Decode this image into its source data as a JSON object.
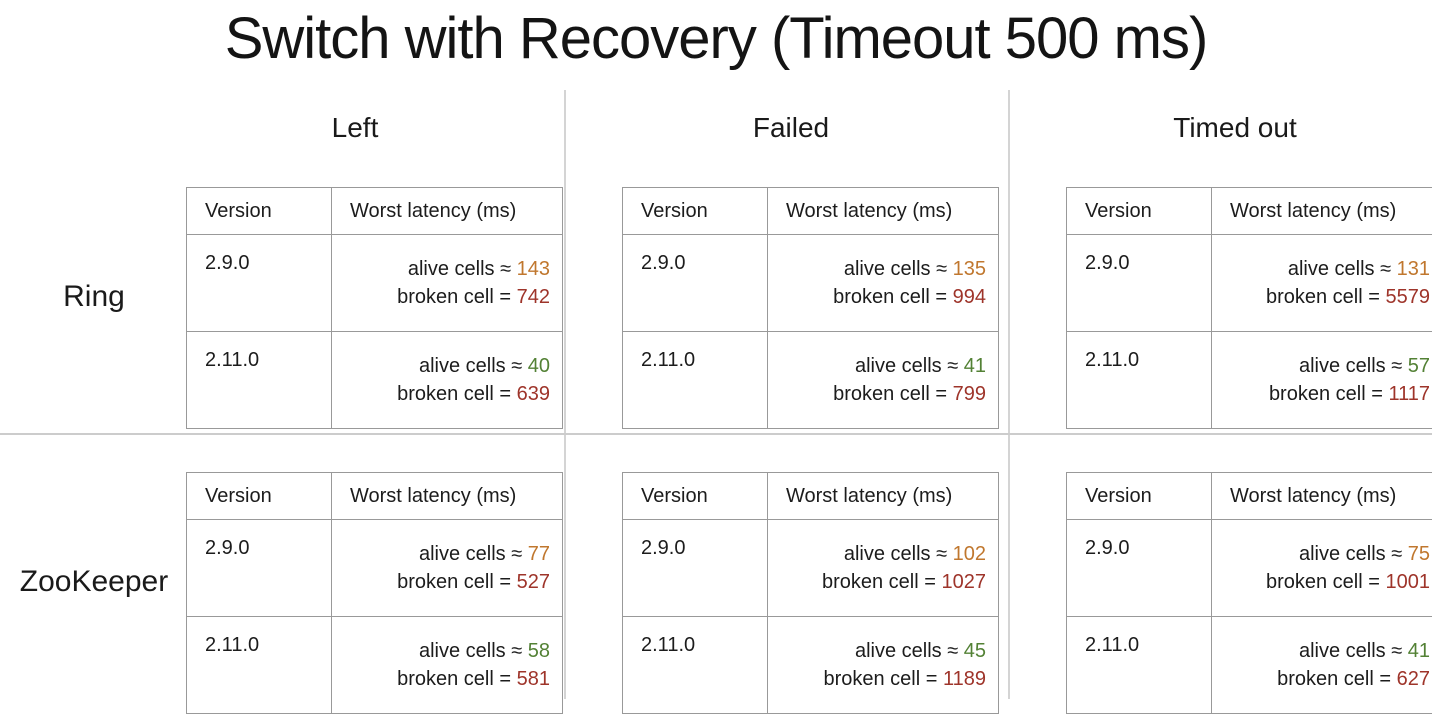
{
  "title": "Switch with Recovery (Timeout 500 ms)",
  "scenario_headers": [
    "Left",
    "Failed",
    "Timed out"
  ],
  "system_labels": [
    "Ring",
    "ZooKeeper"
  ],
  "table_columns": {
    "version": "Version",
    "latency": "Worst latency (ms)"
  },
  "latency_labels": {
    "alive": "alive cells ≈",
    "broken": "broken cell ="
  },
  "colors": {
    "alive_slow": "#c0772e",
    "alive_fast": "#538135",
    "broken_value": "#9e342a",
    "table_border": "#999999",
    "divider": "#d4d4d4"
  },
  "tables": [
    {
      "system": "Ring",
      "scenario": "Left",
      "entries": [
        {
          "version": "2.9.0",
          "alive_ms": "143",
          "alive_color": "alive_slow",
          "broken_ms": "742"
        },
        {
          "version": "2.11.0",
          "alive_ms": "40",
          "alive_color": "alive_fast",
          "broken_ms": "639"
        }
      ]
    },
    {
      "system": "Ring",
      "scenario": "Failed",
      "entries": [
        {
          "version": "2.9.0",
          "alive_ms": "135",
          "alive_color": "alive_slow",
          "broken_ms": "994"
        },
        {
          "version": "2.11.0",
          "alive_ms": "41",
          "alive_color": "alive_fast",
          "broken_ms": "799"
        }
      ]
    },
    {
      "system": "Ring",
      "scenario": "Timed out",
      "entries": [
        {
          "version": "2.9.0",
          "alive_ms": "131",
          "alive_color": "alive_slow",
          "broken_ms": "5579"
        },
        {
          "version": "2.11.0",
          "alive_ms": "57",
          "alive_color": "alive_fast",
          "broken_ms": "1117"
        }
      ]
    },
    {
      "system": "ZooKeeper",
      "scenario": "Left",
      "entries": [
        {
          "version": "2.9.0",
          "alive_ms": "77",
          "alive_color": "alive_slow",
          "broken_ms": "527"
        },
        {
          "version": "2.11.0",
          "alive_ms": "58",
          "alive_color": "alive_fast",
          "broken_ms": "581"
        }
      ]
    },
    {
      "system": "ZooKeeper",
      "scenario": "Failed",
      "entries": [
        {
          "version": "2.9.0",
          "alive_ms": "102",
          "alive_color": "alive_slow",
          "broken_ms": "1027"
        },
        {
          "version": "2.11.0",
          "alive_ms": "45",
          "alive_color": "alive_fast",
          "broken_ms": "1189"
        }
      ]
    },
    {
      "system": "ZooKeeper",
      "scenario": "Timed out",
      "entries": [
        {
          "version": "2.9.0",
          "alive_ms": "75",
          "alive_color": "alive_slow",
          "broken_ms": "1001"
        },
        {
          "version": "2.11.0",
          "alive_ms": "41",
          "alive_color": "alive_fast",
          "broken_ms": "627"
        }
      ]
    }
  ],
  "chart_data": {
    "type": "table",
    "title": "Switch with Recovery (Timeout 500 ms)",
    "timeout_ms": 500,
    "scenarios": [
      "Left",
      "Failed",
      "Timed out"
    ],
    "systems": [
      "Ring",
      "ZooKeeper"
    ],
    "columns": [
      "Version",
      "Worst latency (ms)"
    ],
    "versions": [
      "2.9.0",
      "2.11.0"
    ],
    "measurements": [
      {
        "system": "Ring",
        "scenario": "Left",
        "version": "2.9.0",
        "alive_cells_worst_ms": 143,
        "broken_cell_worst_ms": 742
      },
      {
        "system": "Ring",
        "scenario": "Left",
        "version": "2.11.0",
        "alive_cells_worst_ms": 40,
        "broken_cell_worst_ms": 639
      },
      {
        "system": "Ring",
        "scenario": "Failed",
        "version": "2.9.0",
        "alive_cells_worst_ms": 135,
        "broken_cell_worst_ms": 994
      },
      {
        "system": "Ring",
        "scenario": "Failed",
        "version": "2.11.0",
        "alive_cells_worst_ms": 41,
        "broken_cell_worst_ms": 799
      },
      {
        "system": "Ring",
        "scenario": "Timed out",
        "version": "2.9.0",
        "alive_cells_worst_ms": 131,
        "broken_cell_worst_ms": 5579
      },
      {
        "system": "Ring",
        "scenario": "Timed out",
        "version": "2.11.0",
        "alive_cells_worst_ms": 57,
        "broken_cell_worst_ms": 1117
      },
      {
        "system": "ZooKeeper",
        "scenario": "Left",
        "version": "2.9.0",
        "alive_cells_worst_ms": 77,
        "broken_cell_worst_ms": 527
      },
      {
        "system": "ZooKeeper",
        "scenario": "Left",
        "version": "2.11.0",
        "alive_cells_worst_ms": 58,
        "broken_cell_worst_ms": 581
      },
      {
        "system": "ZooKeeper",
        "scenario": "Failed",
        "version": "2.9.0",
        "alive_cells_worst_ms": 102,
        "broken_cell_worst_ms": 1027
      },
      {
        "system": "ZooKeeper",
        "scenario": "Failed",
        "version": "2.11.0",
        "alive_cells_worst_ms": 45,
        "broken_cell_worst_ms": 1189
      },
      {
        "system": "ZooKeeper",
        "scenario": "Timed out",
        "version": "2.9.0",
        "alive_cells_worst_ms": 75,
        "broken_cell_worst_ms": 1001
      },
      {
        "system": "ZooKeeper",
        "scenario": "Timed out",
        "version": "2.11.0",
        "alive_cells_worst_ms": 41,
        "broken_cell_worst_ms": 627
      }
    ]
  }
}
